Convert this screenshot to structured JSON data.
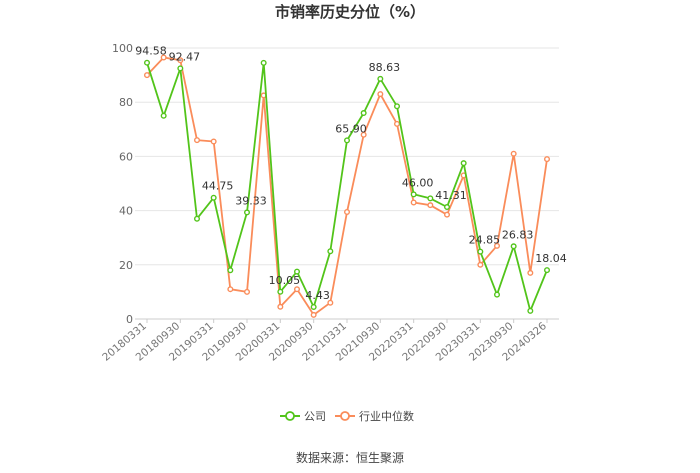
{
  "chart_data": {
    "type": "line",
    "title": "市销率历史分位（%）",
    "source": "数据来源：恒生聚源",
    "ylim": [
      0,
      100
    ],
    "yticks": [
      0,
      20,
      40,
      60,
      80,
      100
    ],
    "grid": true,
    "legend_position": "bottom",
    "x": [
      "20180331",
      "20180630",
      "20180930",
      "20181231",
      "20190331",
      "20190630",
      "20190930",
      "20191231",
      "20200331",
      "20200630",
      "20200930",
      "20201231",
      "20210331",
      "20210630",
      "20210930",
      "20211231",
      "20220331",
      "20220630",
      "20220930",
      "20221231",
      "20230331",
      "20230630",
      "20230930",
      "20231231",
      "20240326"
    ],
    "x_tick_labels": [
      "20180331",
      "20180930",
      "20190331",
      "20190930",
      "20200331",
      "20200930",
      "20210331",
      "20210930",
      "20220331",
      "20220930",
      "20230331",
      "20230930",
      "20240326"
    ],
    "series": [
      {
        "name": "公司",
        "color": "#52c41a",
        "values": [
          94.58,
          75,
          92.47,
          37,
          44.75,
          18,
          39.33,
          94.5,
          10.05,
          17.5,
          4.43,
          25,
          65.9,
          76,
          88.63,
          78.5,
          46.0,
          44.5,
          41.31,
          57.5,
          24.85,
          9,
          26.83,
          3,
          18.04
        ],
        "data_labels": [
          "94.58",
          "",
          "92.47",
          "",
          "44.75",
          "",
          "39.33",
          "",
          "10.05",
          "",
          "4.43",
          "",
          "65.90",
          "",
          "88.63",
          "",
          "46.00",
          "",
          "41.31",
          "",
          "24.85",
          "",
          "26.83",
          "",
          "18.04"
        ]
      },
      {
        "name": "行业中位数",
        "color": "#fa8c5a",
        "values": [
          90,
          96.5,
          95.5,
          66,
          65.5,
          11,
          10,
          82.5,
          4.5,
          11,
          1.5,
          6,
          39.5,
          68,
          83,
          72,
          43,
          42,
          38.5,
          53,
          20,
          27,
          61,
          17,
          59
        ]
      }
    ]
  }
}
